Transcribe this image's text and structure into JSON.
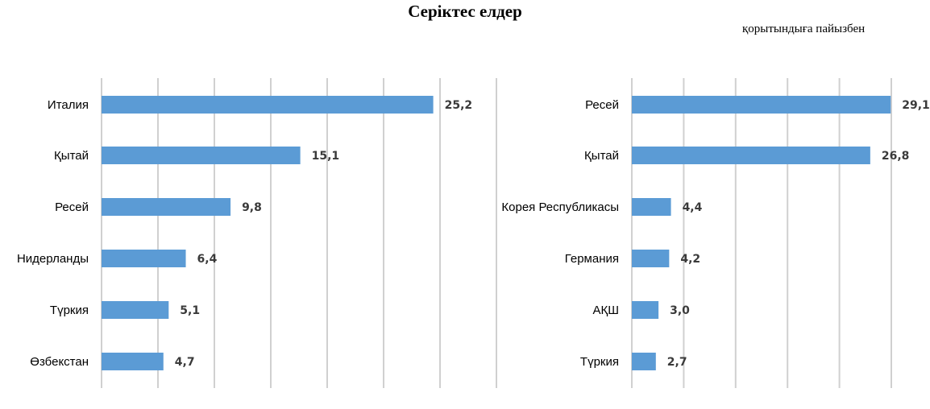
{
  "title": "Серіктес елдер",
  "subtitle": "қорытындыға пайызбен",
  "colors": {
    "bar": "#5b9bd5",
    "grid": "#d0d0d0"
  },
  "chart_data": [
    {
      "type": "bar",
      "orientation": "horizontal",
      "categories": [
        "Италия",
        "Қытай",
        "Ресей",
        "Нидерланды",
        "Түркия",
        "Өзбекстан"
      ],
      "values": [
        25.2,
        15.1,
        9.8,
        6.4,
        5.1,
        4.7
      ],
      "value_labels": [
        "25,2",
        "15,1",
        "9,8",
        "6,4",
        "5,1",
        "4,7"
      ],
      "xlim": [
        0,
        30
      ],
      "grid": true
    },
    {
      "type": "bar",
      "orientation": "horizontal",
      "categories": [
        "Ресей",
        "Қытай",
        "Корея Республикасы",
        "Германия",
        "АҚШ",
        "Түркия"
      ],
      "values": [
        29.1,
        26.8,
        4.4,
        4.2,
        3.0,
        2.7
      ],
      "value_labels": [
        "29,1",
        "26,8",
        "4,4",
        "4,2",
        "3,0",
        "2,7"
      ],
      "xlim": [
        0,
        35
      ],
      "grid": true
    }
  ]
}
